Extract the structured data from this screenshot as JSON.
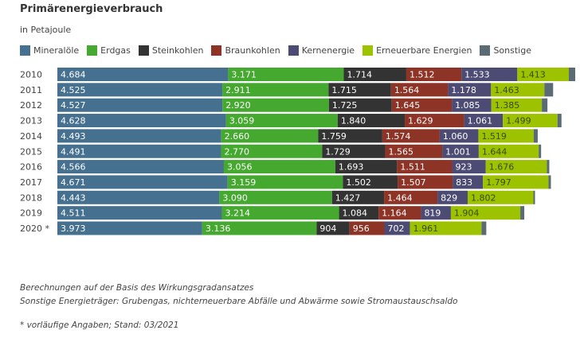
{
  "chart_data": {
    "type": "bar",
    "orientation": "horizontal",
    "stacked": true,
    "title": "Primärenergieverbrauch",
    "subtitle": "in Petajoule",
    "legend_placement": "top-left",
    "grid": false,
    "categories": [
      "2010",
      "2011",
      "2012",
      "2013",
      "2014",
      "2015",
      "2016",
      "2017",
      "2018",
      "2019",
      "2020 *"
    ],
    "series": [
      {
        "name": "Mineralöle",
        "color": "#46708f",
        "values": [
          4684,
          4525,
          4527,
          4628,
          4493,
          4491,
          4566,
          4671,
          4443,
          4511,
          3973
        ]
      },
      {
        "name": "Erdgas",
        "color": "#45a82f",
        "values": [
          3171,
          2911,
          2920,
          3059,
          2660,
          2770,
          3056,
          3159,
          3090,
          3214,
          3136
        ]
      },
      {
        "name": "Steinkohlen",
        "color": "#333333",
        "values": [
          1714,
          1715,
          1725,
          1840,
          1759,
          1729,
          1693,
          1502,
          1427,
          1084,
          904
        ]
      },
      {
        "name": "Braunkohlen",
        "color": "#8e3427",
        "values": [
          1512,
          1564,
          1645,
          1629,
          1574,
          1565,
          1511,
          1507,
          1464,
          1164,
          956
        ]
      },
      {
        "name": "Kernenergie",
        "color": "#4c4b74",
        "values": [
          1533,
          1178,
          1085,
          1061,
          1060,
          1001,
          923,
          833,
          829,
          819,
          702
        ]
      },
      {
        "name": "Erneuerbare Energien",
        "color": "#9cc200",
        "values": [
          1413,
          1463,
          1385,
          1499,
          1519,
          1644,
          1676,
          1797,
          1802,
          1904,
          1961
        ]
      },
      {
        "name": "Sonstige",
        "color": "#5b6b75",
        "values": [
          175,
          240,
          153,
          109,
          109,
          66,
          66,
          66,
          44,
          109,
          131
        ],
        "labeled": false
      }
    ],
    "label_colors": {
      "dark": "#ffffff",
      "light": "#3a4a10"
    }
  },
  "notes": [
    "Berechnungen auf der Basis des Wirkungsgradansatzes",
    "Sonstige Energieträger: Grubengas, nichterneuerbare Abfälle und Abwärme sowie Stromaustauschsaldo",
    "* vorläufige Angaben; Stand: 03/2021"
  ]
}
